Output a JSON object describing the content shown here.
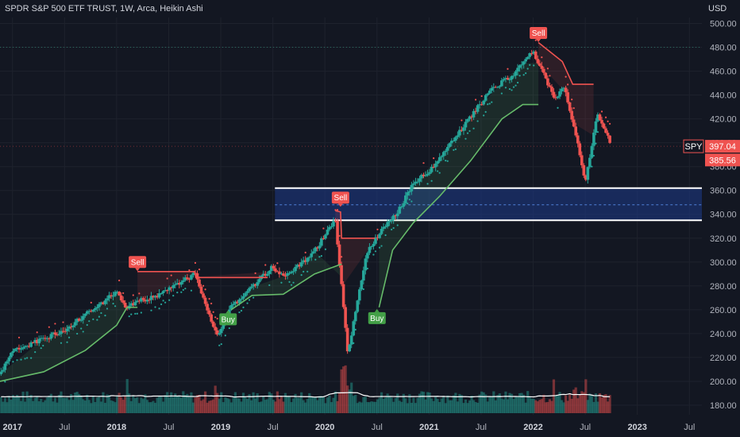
{
  "header": {
    "title": "SPDR S&P 500 ETF TRUST, 1W, Arca, Heikin Ashi",
    "currency": "USD"
  },
  "colors": {
    "background": "#131722",
    "up": "#26a69a",
    "down": "#ef5350",
    "stop_upper": "#ef5350",
    "stop_lower": "#66bb6a",
    "zone_fill": "#1e3a8a",
    "zone_border": "#ffffff",
    "volume_ma": "#ffffff",
    "buy_label": "#43a047",
    "sell_label": "#ef5350"
  },
  "chart_data": {
    "type": "candlestick",
    "ylim": [
      172,
      505
    ],
    "y_ticks": [
      500,
      480,
      460,
      440,
      420,
      400,
      380,
      360,
      340,
      320,
      300,
      280,
      260,
      240,
      220,
      200,
      180
    ],
    "x_ticks": [
      {
        "label": "2017",
        "year": true,
        "t": 2017.0
      },
      {
        "label": "Jul",
        "year": false,
        "t": 2017.5
      },
      {
        "label": "2018",
        "year": true,
        "t": 2018.0
      },
      {
        "label": "Jul",
        "year": false,
        "t": 2018.5
      },
      {
        "label": "2019",
        "year": true,
        "t": 2019.0
      },
      {
        "label": "Jul",
        "year": false,
        "t": 2019.5
      },
      {
        "label": "2020",
        "year": true,
        "t": 2020.0
      },
      {
        "label": "Jul",
        "year": false,
        "t": 2020.5
      },
      {
        "label": "2021",
        "year": true,
        "t": 2021.0
      },
      {
        "label": "Jul",
        "year": false,
        "t": 2021.5
      },
      {
        "label": "2022",
        "year": true,
        "t": 2022.0
      },
      {
        "label": "Jul",
        "year": false,
        "t": 2022.5
      },
      {
        "label": "2023",
        "year": true,
        "t": 2023.0
      },
      {
        "label": "Jul",
        "year": false,
        "t": 2023.5
      }
    ],
    "xlim": [
      2016.88,
      2023.62
    ],
    "price_path": [
      [
        2016.88,
        206
      ],
      [
        2017.0,
        225
      ],
      [
        2017.5,
        243
      ],
      [
        2018.0,
        275
      ],
      [
        2018.08,
        262
      ],
      [
        2018.2,
        267
      ],
      [
        2018.4,
        272
      ],
      [
        2018.75,
        290
      ],
      [
        2018.97,
        237
      ],
      [
        2019.1,
        262
      ],
      [
        2019.5,
        296
      ],
      [
        2019.6,
        288
      ],
      [
        2019.85,
        303
      ],
      [
        2020.1,
        335
      ],
      [
        2020.22,
        223
      ],
      [
        2020.4,
        308
      ],
      [
        2020.55,
        328
      ],
      [
        2020.7,
        342
      ],
      [
        2020.85,
        366
      ],
      [
        2021.0,
        376
      ],
      [
        2021.3,
        410
      ],
      [
        2021.6,
        445
      ],
      [
        2021.8,
        456
      ],
      [
        2022.0,
        477
      ],
      [
        2022.2,
        437
      ],
      [
        2022.3,
        447
      ],
      [
        2022.45,
        390
      ],
      [
        2022.5,
        368
      ],
      [
        2022.62,
        425
      ],
      [
        2022.75,
        397
      ]
    ],
    "last_price": 397.04,
    "last_price_label": "SPY",
    "secondary_price": 385.56,
    "resistance_zone": {
      "top": 362,
      "bottom": 335,
      "mid": 348,
      "t_start": 2019.52
    },
    "reference_lines": [
      480,
      397
    ],
    "stop_upper": [
      [
        2018.2,
        292
      ],
      [
        2018.75,
        292
      ],
      [
        2018.76,
        287
      ],
      [
        2019.45,
        287
      ]
    ],
    "stop_upper_2": [
      [
        2020.1,
        343
      ],
      [
        2020.15,
        342
      ],
      [
        2020.16,
        320
      ],
      [
        2020.48,
        320
      ]
    ],
    "stop_upper_3": [
      [
        2022.05,
        484
      ],
      [
        2022.28,
        468
      ],
      [
        2022.38,
        449
      ],
      [
        2022.58,
        449
      ]
    ],
    "stop_lower": [
      [
        2016.88,
        200
      ],
      [
        2017.3,
        208
      ],
      [
        2017.7,
        226
      ],
      [
        2018.0,
        247
      ],
      [
        2018.1,
        262
      ],
      [
        2018.2,
        262
      ]
    ],
    "stop_lower_2": [
      [
        2019.1,
        260
      ],
      [
        2019.3,
        272
      ],
      [
        2019.6,
        273
      ],
      [
        2019.9,
        290
      ],
      [
        2020.15,
        298
      ],
      [
        2020.16,
        298
      ]
    ],
    "stop_lower_3": [
      [
        2020.52,
        262
      ],
      [
        2020.65,
        310
      ],
      [
        2020.85,
        333
      ],
      [
        2021.1,
        355
      ],
      [
        2021.4,
        385
      ],
      [
        2021.7,
        420
      ],
      [
        2021.9,
        432
      ],
      [
        2022.05,
        432
      ]
    ],
    "signals": [
      {
        "type": "sell",
        "label": "Sell",
        "t": 2018.2,
        "price": 300
      },
      {
        "type": "buy",
        "label": "Buy",
        "t": 2019.07,
        "price": 252
      },
      {
        "type": "sell",
        "label": "Sell",
        "t": 2020.15,
        "price": 354
      },
      {
        "type": "buy",
        "label": "Buy",
        "t": 2020.5,
        "price": 253
      },
      {
        "type": "sell",
        "label": "Sell",
        "t": 2022.05,
        "price": 492
      }
    ],
    "volume_spikes": [
      {
        "t": 2018.1,
        "v": 0.55
      },
      {
        "t": 2018.95,
        "v": 0.4
      },
      {
        "t": 2020.17,
        "v": 1.0
      },
      {
        "t": 2020.2,
        "v": 0.85
      },
      {
        "t": 2020.25,
        "v": 0.55
      },
      {
        "t": 2022.2,
        "v": 0.5
      },
      {
        "t": 2022.4,
        "v": 0.45
      },
      {
        "t": 2022.5,
        "v": 0.55
      }
    ]
  }
}
